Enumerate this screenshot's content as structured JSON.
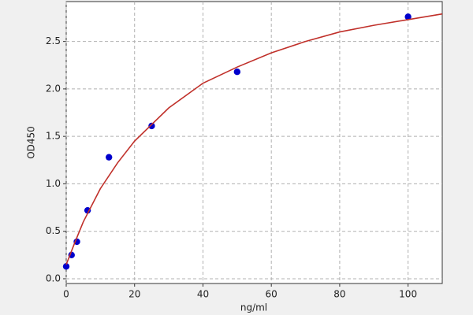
{
  "chart_data": {
    "type": "scatter",
    "x_label": "ng/ml",
    "y_label": "OD450",
    "xlim": [
      0,
      110
    ],
    "ylim": [
      -0.05,
      2.92
    ],
    "xticks": [
      0,
      20,
      40,
      60,
      80,
      100
    ],
    "yticks": [
      {
        "value": 0,
        "label": "0.0"
      },
      0.5,
      {
        "value": 1,
        "label": "1.0"
      },
      1.5,
      {
        "value": 2,
        "label": "2.0"
      },
      2.5
    ],
    "grid": true,
    "series": [
      {
        "color": "#0000cc",
        "x": [
          0,
          1.56,
          3.12,
          6.25,
          12.5,
          25,
          50,
          100
        ],
        "values": [
          0.13,
          0.25,
          0.39,
          0.72,
          1.28,
          1.61,
          2.18,
          2.76
        ]
      },
      {
        "kind": "line",
        "color": "#c0302a",
        "x": [
          0,
          2.5,
          5,
          10,
          15,
          20,
          30,
          40,
          50,
          60,
          70,
          80,
          90,
          100,
          110
        ],
        "values": [
          0.15,
          0.38,
          0.6,
          0.95,
          1.22,
          1.45,
          1.8,
          2.06,
          2.23,
          2.38,
          2.5,
          2.6,
          2.67,
          2.73,
          2.79
        ]
      }
    ]
  }
}
